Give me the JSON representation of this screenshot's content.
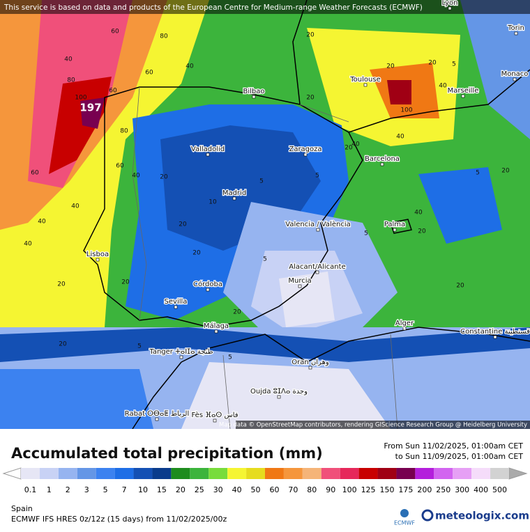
{
  "notice": "This service is based on data and products of the European Centre for Medium-range Weather Forecasts (ECMWF)",
  "map": {
    "cities": [
      "Lyon",
      "Torin",
      "Bilbao",
      "Toulouse",
      "Monaco",
      "Marseille",
      "Valladolid",
      "Zaragoza",
      "Barcelona",
      "Madrid",
      "Valencia / València",
      "Palma",
      "Lisboa",
      "Alacant/Alicante",
      "Murcia",
      "Córdoba",
      "Sevilla",
      "Málaga",
      "Alger",
      "Constantine قسنطينة",
      "Tanger ⵜⴰⵏⵊⴰ طنجة",
      "Oran وهران",
      "Oujda ⵓⵊⴷⴰ وجدة",
      "Rabat ⵔⴱⴰⵟ الرباط",
      "Fès ⴼⴰⵙ فاس"
    ],
    "contour_labels": [
      "60",
      "80",
      "40",
      "80",
      "60",
      "40",
      "100",
      "80",
      "60",
      "40",
      "20",
      "40",
      "20",
      "60",
      "40",
      "20",
      "40",
      "5",
      "5",
      "5",
      "20",
      "20",
      "40",
      "20",
      "40",
      "20",
      "5",
      "5",
      "20",
      "5",
      "20",
      "5",
      "10",
      "20",
      "20",
      "5",
      "20",
      "60",
      "20",
      "40",
      "100",
      "40",
      "20",
      "20"
    ],
    "max_label": "197",
    "attribution": "Map data © OpenStreetMap contributors, rendering GIScience Research Group @ Heidelberg University"
  },
  "footer": {
    "title": "Accumulated total precipitation (mm)",
    "period_from": "From Sun 11/02/2025, 01:00am CET",
    "period_to": "to Sun 11/09/2025, 01:00am CET",
    "region": "Spain",
    "model": "ECMWF IFS HRES 0z/12z (15 days) from 11/02/2025/00z",
    "logo_small": "ECMWF",
    "logo_brand": "meteologix.com"
  },
  "legend": {
    "labels": [
      0.1,
      1,
      2,
      3,
      5,
      7,
      10,
      15,
      20,
      25,
      30,
      40,
      50,
      60,
      70,
      80,
      90,
      100,
      125,
      150,
      175,
      200,
      250,
      300,
      400,
      500
    ],
    "colors": [
      "#e6e6f5",
      "#c8d2f5",
      "#96b4f0",
      "#6496e6",
      "#3c82f0",
      "#1e6ee6",
      "#1450b4",
      "#0a3c8c",
      "#1e8c1e",
      "#3cb43c",
      "#78dc3c",
      "#f5f532",
      "#e6dc1e",
      "#f07814",
      "#f5963c",
      "#f5b478",
      "#f0507a",
      "#e6285a",
      "#c80000",
      "#a00014",
      "#780050",
      "#b41edc",
      "#d264f0",
      "#e6a0f5",
      "#f5dcfa",
      "#d2d2d2"
    ]
  }
}
